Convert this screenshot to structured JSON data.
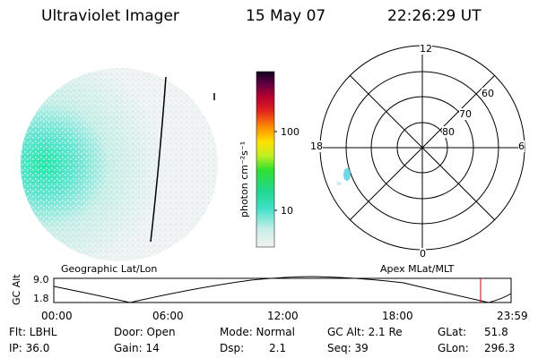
{
  "header": {
    "instrument": "Ultraviolet Imager",
    "date": "15 May 07",
    "time": "22:26:29 UT"
  },
  "colorbar": {
    "unit_label": "photon cm⁻²s⁻¹",
    "ticks": [
      "100",
      "10"
    ]
  },
  "polar": {
    "mlt_labels": [
      "12",
      "18",
      "6",
      "0"
    ],
    "lat_labels": [
      "60",
      "70",
      "80"
    ]
  },
  "timeline": {
    "left_label": "Geographic Lat/Lon",
    "right_label": "Apex MLat/MLT",
    "axis_title": "GC Alt",
    "y_labels": [
      "9.0",
      "1.8"
    ],
    "x_labels": [
      "00:00",
      "06:00",
      "12:00",
      "18:00",
      "23:59"
    ],
    "marker_color": "#cc0000"
  },
  "info": {
    "flt": "Flt: LBHL",
    "ip": "IP: 36.0",
    "door": "Door: Open",
    "gain": "Gain: 14",
    "mode": "Mode: Normal",
    "dsp_label": "Dsp:",
    "dsp_value": "2.1",
    "gcalt": "GC Alt: 2.1 Re",
    "seq": "Seq: 39",
    "glat_label": "GLat:",
    "glat_value": "51.8",
    "glon_label": "GLon:",
    "glon_value": "296.3"
  }
}
